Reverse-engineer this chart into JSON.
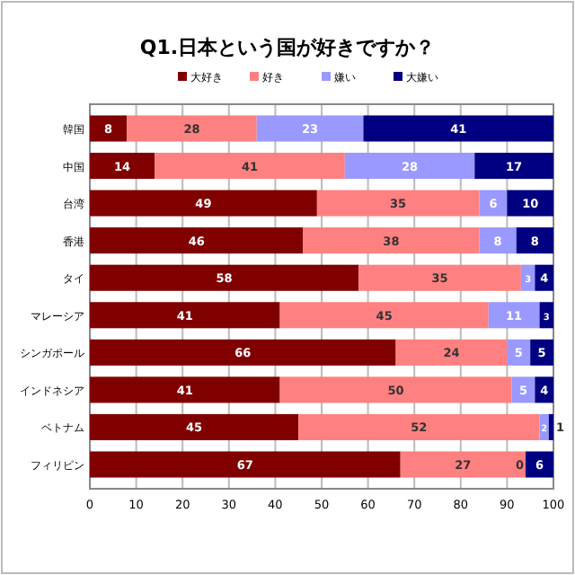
{
  "chart_data": {
    "type": "bar",
    "orientation": "horizontal",
    "stacked": true,
    "title": "Q1.日本という国が好きですか？",
    "categories": [
      "韓国",
      "中国",
      "台湾",
      "香港",
      "タイ",
      "マレーシア",
      "シンガポール",
      "インドネシア",
      "ベトナム",
      "フィリピン"
    ],
    "series": [
      {
        "name": "大好き",
        "color": "#800000",
        "values": [
          8,
          14,
          49,
          46,
          58,
          41,
          66,
          41,
          45,
          67
        ]
      },
      {
        "name": "好き",
        "color": "#ff8080",
        "values": [
          28,
          41,
          35,
          38,
          35,
          45,
          24,
          50,
          52,
          27
        ]
      },
      {
        "name": "嫌い",
        "color": "#9999ff",
        "values": [
          23,
          28,
          6,
          8,
          3,
          11,
          5,
          5,
          2,
          0
        ]
      },
      {
        "name": "大嫌い",
        "color": "#000080",
        "values": [
          41,
          17,
          10,
          8,
          4,
          3,
          5,
          4,
          1,
          6
        ]
      }
    ],
    "xlim": [
      0,
      100
    ],
    "xticks": [
      0,
      10,
      20,
      30,
      40,
      50,
      60,
      70,
      80,
      90,
      100
    ],
    "grid": "x",
    "legend": "top",
    "data_labels": true
  }
}
